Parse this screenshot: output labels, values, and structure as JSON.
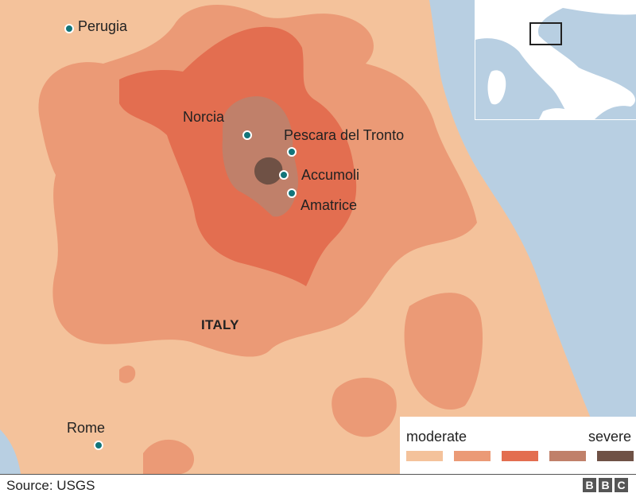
{
  "colors": {
    "background": "#f4c29b",
    "sea": "#b8cfe2",
    "intensity": [
      "#f4c29b",
      "#eb9a76",
      "#e36e50",
      "#c0806a",
      "#6f5145"
    ],
    "dot": "#12757a"
  },
  "towns": [
    {
      "name": "Perugia"
    },
    {
      "name": "Norcia"
    },
    {
      "name": "Pescara del Tronto"
    },
    {
      "name": "Accumoli"
    },
    {
      "name": "Amatrice"
    },
    {
      "name": "Rome"
    }
  ],
  "country": "ITALY",
  "legend": {
    "low": "moderate",
    "high": "severe"
  },
  "source": "Source: USGS",
  "brand": [
    "B",
    "B",
    "C"
  ]
}
